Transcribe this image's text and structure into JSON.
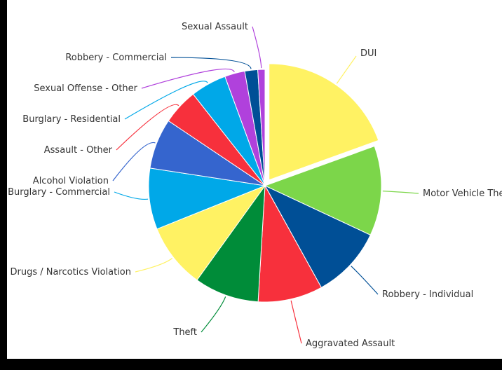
{
  "chart_data": {
    "type": "pie",
    "title": "",
    "exploded_slice": "DUI",
    "slices": [
      {
        "label": "DUI",
        "value": 19.5,
        "color": "#FFF263"
      },
      {
        "label": "Motor Vehicle Theft",
        "value": 12.5,
        "color": "#7CD64A"
      },
      {
        "label": "Robbery - Individual",
        "value": 10.0,
        "color": "#004F96"
      },
      {
        "label": "Aggravated Assault",
        "value": 9.0,
        "color": "#F7303C"
      },
      {
        "label": "Theft",
        "value": 9.0,
        "color": "#008C39"
      },
      {
        "label": "Drugs / Narcotics Violation",
        "value": 9.0,
        "color": "#FFF263"
      },
      {
        "label": "Burglary - Commercial",
        "value": 8.5,
        "color": "#00A8E8"
      },
      {
        "label": "Alcohol Violation",
        "value": 7.0,
        "color": "#3565CE"
      },
      {
        "label": "Assault - Other",
        "value": 5.0,
        "color": "#F7303C"
      },
      {
        "label": "Burglary - Residential",
        "value": 5.0,
        "color": "#00A8E8"
      },
      {
        "label": "Sexual Offense - Other",
        "value": 2.8,
        "color": "#B041DC"
      },
      {
        "label": "Robbery - Commercial",
        "value": 1.8,
        "color": "#004F96"
      },
      {
        "label": "Sexual Assault",
        "value": 1.0,
        "color": "#B041DC"
      }
    ]
  }
}
